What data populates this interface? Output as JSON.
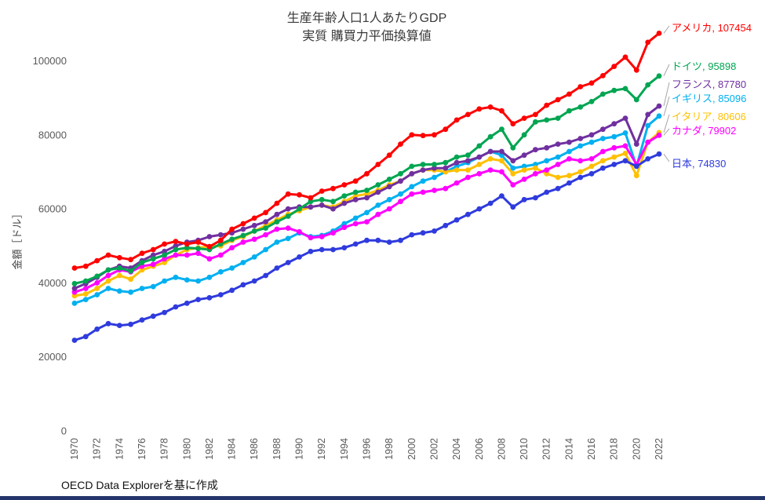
{
  "page": {
    "footer": "OECD Data Explorerを基に作成",
    "bottom_bar_color": "#23356b",
    "background": "#ffffff",
    "tick_color": "#595959",
    "connector_color": "#a6a6a6"
  },
  "chart_data": {
    "type": "line",
    "title_line1": "生産年齢人口1人あたりGDP",
    "title_line2": "実質 購買力平価換算値",
    "ylabel": "金額［ドル］",
    "grid": false,
    "legend_position": "right-end-labels",
    "ylim": [
      0,
      110000
    ],
    "y_ticks": [
      0,
      20000,
      40000,
      60000,
      80000,
      100000
    ],
    "x_tick_step": 2,
    "years": [
      1970,
      1971,
      1972,
      1973,
      1974,
      1975,
      1976,
      1977,
      1978,
      1979,
      1980,
      1981,
      1982,
      1983,
      1984,
      1985,
      1986,
      1987,
      1988,
      1989,
      1990,
      1991,
      1992,
      1993,
      1994,
      1995,
      1996,
      1997,
      1998,
      1999,
      2000,
      2001,
      2002,
      2003,
      2004,
      2005,
      2006,
      2007,
      2008,
      2009,
      2010,
      2011,
      2012,
      2013,
      2014,
      2015,
      2016,
      2017,
      2018,
      2019,
      2020,
      2021,
      2022
    ],
    "draw_order": [
      3,
      4,
      5,
      2,
      6,
      1,
      0
    ],
    "series": [
      {
        "name": "アメリカ",
        "label": "アメリカ, 107454",
        "final": 107454,
        "color": "#ff0000",
        "label_y": 25,
        "values": [
          44000,
          44500,
          46000,
          47500,
          46800,
          46300,
          48000,
          49000,
          50500,
          51200,
          50500,
          51000,
          49800,
          51500,
          54500,
          56000,
          57500,
          59000,
          61500,
          64000,
          63800,
          63000,
          64800,
          65500,
          66500,
          67500,
          69500,
          72000,
          74500,
          77500,
          80000,
          79800,
          80000,
          81500,
          84000,
          85500,
          87000,
          87500,
          86500,
          83000,
          84500,
          85500,
          88000,
          89500,
          91000,
          93000,
          94000,
          96000,
          98500,
          101000,
          97500,
          105000,
          107454
        ]
      },
      {
        "name": "ドイツ",
        "label": "ドイツ, 95898",
        "final": 95898,
        "color": "#00a551",
        "label_y": 74,
        "values": [
          39800,
          40500,
          41800,
          43500,
          44000,
          43200,
          45500,
          46500,
          47500,
          49000,
          49500,
          49300,
          49000,
          50500,
          51800,
          52800,
          54000,
          54800,
          56500,
          58000,
          60000,
          62000,
          62500,
          62000,
          63500,
          64500,
          65000,
          66500,
          68000,
          69500,
          71500,
          72000,
          72000,
          72500,
          74000,
          74500,
          77000,
          79500,
          81500,
          76500,
          80000,
          83500,
          84000,
          84500,
          86500,
          87500,
          89000,
          91000,
          92000,
          92500,
          89500,
          93500,
          95898
        ]
      },
      {
        "name": "フランス",
        "label": "フランス, 87780",
        "final": 87780,
        "color": "#7030a0",
        "label_y": 97,
        "values": [
          38500,
          39800,
          41500,
          43500,
          44500,
          44000,
          46000,
          47500,
          48500,
          50000,
          51000,
          51500,
          52500,
          53000,
          53500,
          54500,
          55500,
          56500,
          58500,
          60000,
          60500,
          60500,
          61000,
          60000,
          61500,
          62500,
          63000,
          64500,
          66000,
          67500,
          69500,
          70500,
          71000,
          71000,
          72500,
          73000,
          74000,
          75500,
          75500,
          73000,
          74500,
          76000,
          76500,
          77500,
          78000,
          79000,
          80000,
          81500,
          83000,
          84500,
          77500,
          85500,
          87780
        ]
      },
      {
        "name": "イギリス",
        "label": "イギリス, 85096",
        "final": 85096,
        "color": "#00b0f0",
        "label_y": 115,
        "values": [
          34500,
          35500,
          36800,
          38500,
          37800,
          37500,
          38500,
          39000,
          40500,
          41500,
          40800,
          40500,
          41500,
          43000,
          44000,
          45500,
          47000,
          49000,
          51000,
          52000,
          53500,
          52500,
          52800,
          54000,
          56000,
          57500,
          59000,
          61000,
          62500,
          64000,
          66000,
          67500,
          68500,
          70000,
          71500,
          72500,
          74000,
          75500,
          74500,
          71000,
          71500,
          72000,
          73000,
          74000,
          75500,
          77000,
          78000,
          79000,
          79500,
          80500,
          71500,
          82500,
          85096
        ]
      },
      {
        "name": "イタリア",
        "label": "イタリア, 80606",
        "final": 80606,
        "color": "#ffc000",
        "label_y": 138,
        "values": [
          36500,
          37000,
          38500,
          40500,
          42000,
          41000,
          43500,
          44500,
          45500,
          47500,
          49000,
          49500,
          49800,
          50000,
          51500,
          52500,
          54000,
          55500,
          57000,
          58500,
          59500,
          60500,
          61000,
          60500,
          62000,
          63500,
          64000,
          65000,
          66500,
          67500,
          69500,
          70500,
          70500,
          70000,
          70500,
          70500,
          72000,
          73500,
          73000,
          69500,
          70500,
          71000,
          69500,
          68500,
          69000,
          70000,
          71500,
          73000,
          74000,
          75000,
          69000,
          78000,
          80606
        ]
      },
      {
        "name": "カナダ",
        "label": "カナダ, 79902",
        "final": 79902,
        "color": "#ff00ff",
        "label_y": 156,
        "values": [
          37500,
          38500,
          40000,
          42000,
          43500,
          43000,
          44500,
          45000,
          46500,
          47500,
          47500,
          48000,
          46500,
          47500,
          49500,
          51000,
          51800,
          53000,
          54500,
          54800,
          53800,
          52200,
          52500,
          53500,
          55000,
          56000,
          56500,
          58500,
          60000,
          62000,
          64000,
          64500,
          65000,
          65500,
          67000,
          68500,
          69500,
          70500,
          70000,
          66500,
          68000,
          69500,
          70500,
          72000,
          73500,
          73000,
          73500,
          75500,
          76500,
          77000,
          72000,
          78000,
          79902
        ]
      },
      {
        "name": "日本",
        "label": "日本, 74830",
        "final": 74830,
        "color": "#2f3bdd",
        "label_y": 198,
        "values": [
          24500,
          25500,
          27500,
          29000,
          28500,
          28800,
          30000,
          31000,
          32000,
          33500,
          34500,
          35500,
          36000,
          36800,
          38000,
          39500,
          40500,
          42000,
          44000,
          45500,
          47000,
          48500,
          49000,
          49000,
          49500,
          50500,
          51500,
          51500,
          51000,
          51500,
          53000,
          53500,
          54000,
          55500,
          57000,
          58500,
          60000,
          61500,
          63500,
          60500,
          62500,
          63000,
          64500,
          65500,
          67000,
          68500,
          69500,
          71000,
          72000,
          73000,
          71500,
          73500,
          74830
        ]
      }
    ]
  }
}
